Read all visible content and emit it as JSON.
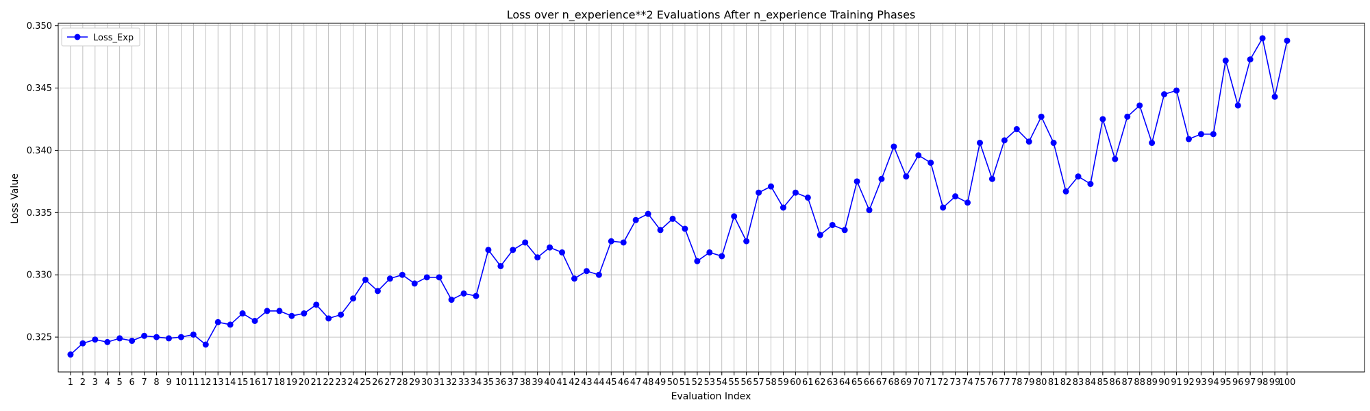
{
  "chart_data": {
    "type": "line",
    "title": "Loss over n_experience**2 Evaluations After n_experience Training Phases",
    "xlabel": "Evaluation Index",
    "ylabel": "Loss Value",
    "ylim": [
      0.3222,
      0.3502
    ],
    "yticks": [
      "0.325",
      "0.330",
      "0.335",
      "0.340",
      "0.345",
      "0.350"
    ],
    "grid": true,
    "legend_position": "top-left",
    "color": "#0000ff",
    "x": [
      1,
      2,
      3,
      4,
      5,
      6,
      7,
      8,
      9,
      10,
      11,
      12,
      13,
      14,
      15,
      16,
      17,
      18,
      19,
      20,
      21,
      22,
      23,
      24,
      25,
      26,
      27,
      28,
      29,
      30,
      31,
      32,
      33,
      34,
      35,
      36,
      37,
      38,
      39,
      40,
      41,
      42,
      43,
      44,
      45,
      46,
      47,
      48,
      49,
      50,
      51,
      52,
      53,
      54,
      55,
      56,
      57,
      58,
      59,
      60,
      61,
      62,
      63,
      64,
      65,
      66,
      67,
      68,
      69,
      70,
      71,
      72,
      73,
      74,
      75,
      76,
      77,
      78,
      79,
      80,
      81,
      82,
      83,
      84,
      85,
      86,
      87,
      88,
      89,
      90,
      91,
      92,
      93,
      94,
      95,
      96,
      97,
      98,
      99,
      100
    ],
    "series": [
      {
        "name": "Loss_Exp",
        "values": [
          0.3236,
          0.3245,
          0.3248,
          0.3246,
          0.3249,
          0.3247,
          0.3251,
          0.325,
          0.3249,
          0.325,
          0.3252,
          0.3244,
          0.3262,
          0.326,
          0.3269,
          0.3263,
          0.3271,
          0.3271,
          0.3267,
          0.3269,
          0.3276,
          0.3265,
          0.3268,
          0.3281,
          0.3296,
          0.3287,
          0.3297,
          0.33,
          0.3293,
          0.3298,
          0.3298,
          0.328,
          0.3285,
          0.3283,
          0.332,
          0.3307,
          0.332,
          0.3326,
          0.3314,
          0.3322,
          0.3318,
          0.3297,
          0.3303,
          0.33,
          0.3327,
          0.3326,
          0.3344,
          0.3349,
          0.3336,
          0.3345,
          0.3337,
          0.3311,
          0.3318,
          0.3315,
          0.3347,
          0.3327,
          0.3366,
          0.3371,
          0.3354,
          0.3366,
          0.3362,
          0.3332,
          0.334,
          0.3336,
          0.3375,
          0.3352,
          0.3377,
          0.3403,
          0.3379,
          0.3396,
          0.339,
          0.3354,
          0.3363,
          0.3358,
          0.3406,
          0.3377,
          0.3408,
          0.3417,
          0.3407,
          0.3427,
          0.3406,
          0.3367,
          0.3379,
          0.3373,
          0.3425,
          0.3393,
          0.3427,
          0.3436,
          0.3406,
          0.3445,
          0.3448,
          0.3409,
          0.3413,
          0.3413,
          0.3472,
          0.3436,
          0.3473,
          0.349,
          0.3443,
          0.3488
        ]
      }
    ]
  }
}
